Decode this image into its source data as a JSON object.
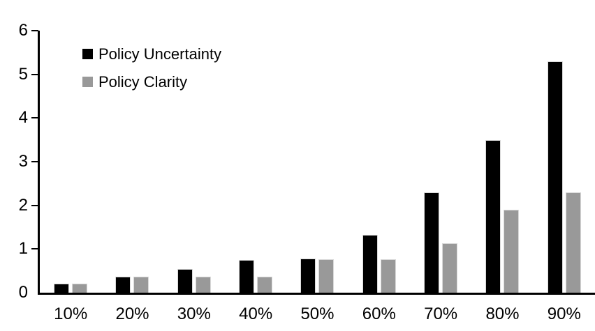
{
  "chart_data": {
    "type": "bar",
    "title": "",
    "xlabel": "",
    "ylabel": "",
    "categories": [
      "10%",
      "20%",
      "30%",
      "40%",
      "50%",
      "60%",
      "70%",
      "80%",
      "90%"
    ],
    "series": [
      {
        "name": "Policy Uncertainty",
        "color": "#000000",
        "values": [
          0.2,
          0.37,
          0.55,
          0.75,
          0.78,
          1.32,
          2.3,
          3.5,
          5.3
        ]
      },
      {
        "name": "Policy Clarity",
        "color": "#999999",
        "values": [
          0.2,
          0.37,
          0.37,
          0.37,
          0.77,
          0.77,
          1.13,
          1.9,
          2.3
        ]
      }
    ],
    "ylim": [
      0,
      6
    ],
    "yticks": [
      0,
      1,
      2,
      3,
      4,
      5,
      6
    ],
    "grid": false,
    "legend_position": "top-left-inside",
    "bar_border_color": "#d9d9d9",
    "axis_color": "#000000"
  }
}
